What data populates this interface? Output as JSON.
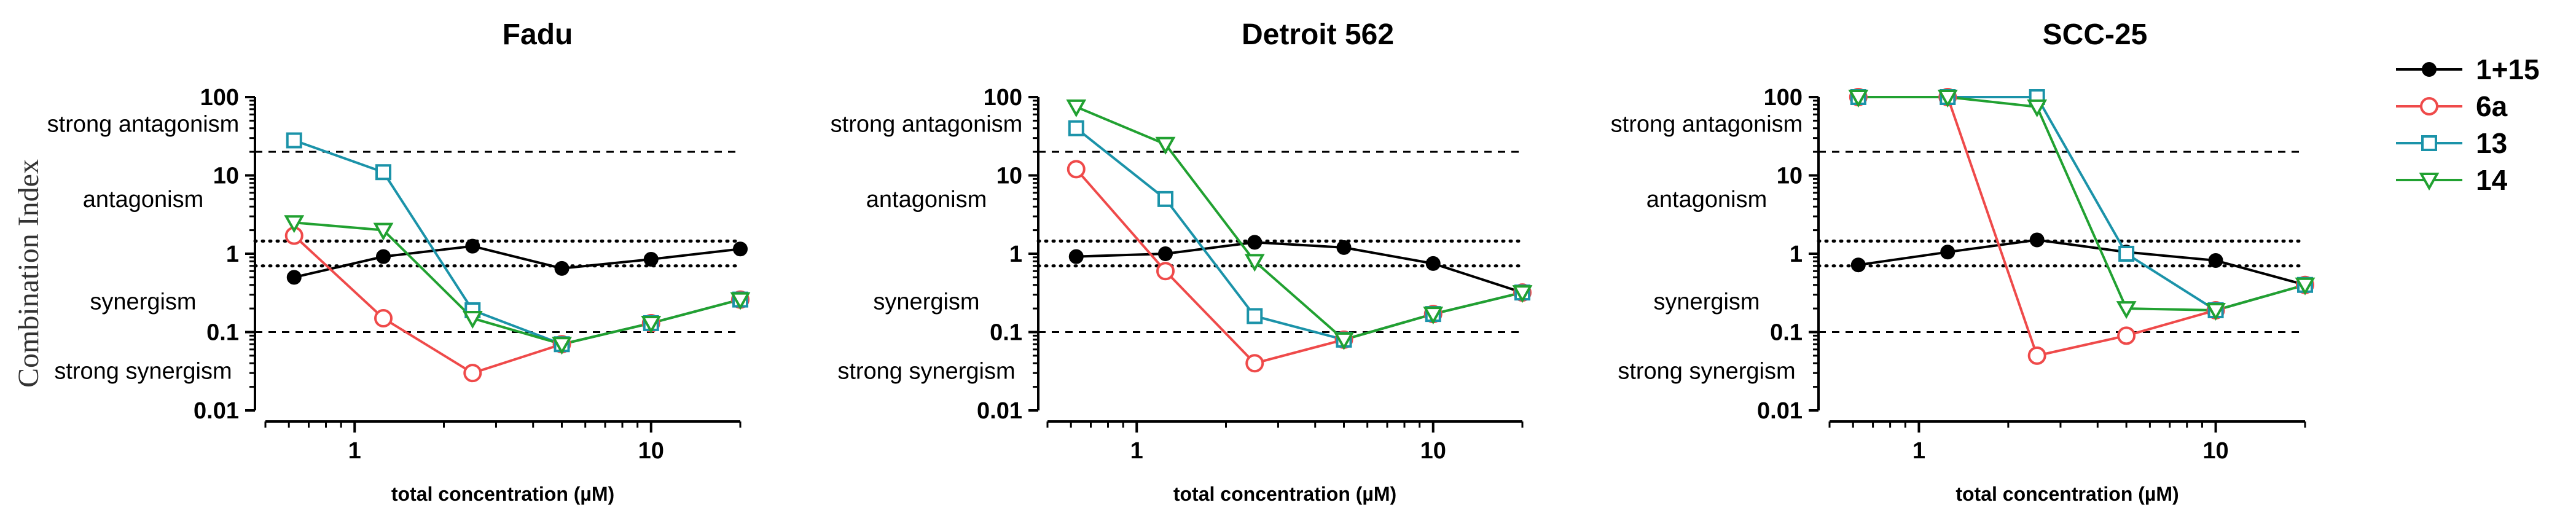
{
  "figure": {
    "ylabel": "Combination Index"
  },
  "chart_data": [
    {
      "type": "line",
      "title": "Fadu",
      "xlabel": "total concentration (µM)",
      "xscale": "log",
      "yscale": "log",
      "xlim": [
        0.5,
        20
      ],
      "ylim": [
        0.01,
        100
      ],
      "x_ticks": [
        1,
        10
      ],
      "y_ticks": [
        0.01,
        0.1,
        1,
        10,
        100
      ],
      "y_tick_labels": [
        "0.01",
        "0.1",
        "1",
        "10",
        "100"
      ],
      "x_tick_labels": [
        "1",
        "10"
      ],
      "reference_lines": {
        "dashed": [
          0.1,
          20
        ],
        "dotted": [
          0.7,
          1.45
        ]
      },
      "regions": [
        "strong antagonism",
        "antagonism",
        "synergism",
        "strong synergism"
      ],
      "series": [
        {
          "name": "1+15",
          "x": [
            0.625,
            1.25,
            2.5,
            5,
            10,
            20
          ],
          "values": [
            0.5,
            0.92,
            1.25,
            0.65,
            0.85,
            1.15
          ]
        },
        {
          "name": "6a",
          "x": [
            0.625,
            1.25,
            2.5,
            5,
            10,
            20
          ],
          "values": [
            1.7,
            0.15,
            0.03,
            0.07,
            0.13,
            0.26
          ]
        },
        {
          "name": "13",
          "x": [
            0.625,
            1.25,
            2.5,
            5,
            10,
            20
          ],
          "values": [
            28,
            11,
            0.19,
            0.07,
            0.13,
            0.26
          ]
        },
        {
          "name": "14",
          "x": [
            0.625,
            1.25,
            2.5,
            5,
            10,
            20
          ],
          "values": [
            2.5,
            2.0,
            0.15,
            0.07,
            0.13,
            0.26
          ]
        }
      ]
    },
    {
      "type": "line",
      "title": "Detroit 562",
      "xlabel": "total concentration (µM)",
      "xscale": "log",
      "yscale": "log",
      "xlim": [
        0.5,
        20
      ],
      "ylim": [
        0.01,
        100
      ],
      "x_ticks": [
        1,
        10
      ],
      "y_ticks": [
        0.01,
        0.1,
        1,
        10,
        100
      ],
      "y_tick_labels": [
        "0.01",
        "0.1",
        "1",
        "10",
        "100"
      ],
      "x_tick_labels": [
        "1",
        "10"
      ],
      "reference_lines": {
        "dashed": [
          0.1,
          20
        ],
        "dotted": [
          0.7,
          1.45
        ]
      },
      "regions": [
        "strong antagonism",
        "antagonism",
        "synergism",
        "strong synergism"
      ],
      "series": [
        {
          "name": "1+15",
          "x": [
            0.625,
            1.25,
            2.5,
            5,
            10,
            20
          ],
          "values": [
            0.92,
            1.0,
            1.4,
            1.2,
            0.75,
            0.32
          ]
        },
        {
          "name": "6a",
          "x": [
            0.625,
            1.25,
            2.5,
            5,
            10,
            20
          ],
          "values": [
            12,
            0.6,
            0.04,
            0.08,
            0.17,
            0.32
          ]
        },
        {
          "name": "13",
          "x": [
            0.625,
            1.25,
            2.5,
            5,
            10,
            20
          ],
          "values": [
            40,
            5.0,
            0.16,
            0.08,
            0.17,
            0.32
          ]
        },
        {
          "name": "14",
          "x": [
            0.625,
            1.25,
            2.5,
            5,
            10,
            20
          ],
          "values": [
            75,
            25,
            0.8,
            0.08,
            0.17,
            0.32
          ]
        }
      ]
    },
    {
      "type": "line",
      "title": "SCC-25",
      "xlabel": "total concentration (µM)",
      "xscale": "log",
      "yscale": "log",
      "xlim": [
        0.5,
        20
      ],
      "ylim": [
        0.01,
        100
      ],
      "x_ticks": [
        1,
        10
      ],
      "y_ticks": [
        0.01,
        0.1,
        1,
        10,
        100
      ],
      "y_tick_labels": [
        "0.01",
        "0.1",
        "1",
        "10",
        "100"
      ],
      "x_tick_labels": [
        "1",
        "10"
      ],
      "reference_lines": {
        "dashed": [
          0.1,
          20
        ],
        "dotted": [
          0.7,
          1.45
        ]
      },
      "regions": [
        "strong antagonism",
        "antagonism",
        "synergism",
        "strong synergism"
      ],
      "series": [
        {
          "name": "1+15",
          "x": [
            0.625,
            1.25,
            2.5,
            5,
            10,
            20
          ],
          "values": [
            0.72,
            1.05,
            1.5,
            1.05,
            0.82,
            0.4
          ]
        },
        {
          "name": "6a",
          "x": [
            0.625,
            1.25,
            2.5,
            5,
            10,
            20
          ],
          "values": [
            100,
            100,
            0.05,
            0.09,
            0.19,
            0.4
          ]
        },
        {
          "name": "13",
          "x": [
            0.625,
            1.25,
            2.5,
            5,
            10,
            20
          ],
          "values": [
            100,
            100,
            100,
            1.0,
            0.19,
            0.4
          ]
        },
        {
          "name": "14",
          "x": [
            0.625,
            1.25,
            2.5,
            5,
            10,
            20
          ],
          "values": [
            100,
            100,
            75,
            0.2,
            0.19,
            0.4
          ]
        }
      ]
    }
  ],
  "legend": {
    "items": [
      {
        "name": "1+15",
        "marker": "filled-circle",
        "color": "#000000"
      },
      {
        "name": "6a",
        "marker": "open-circle",
        "color": "#ef4a4a"
      },
      {
        "name": "13",
        "marker": "open-square",
        "color": "#1b93a9"
      },
      {
        "name": "14",
        "marker": "open-triangle-down",
        "color": "#21a131"
      }
    ]
  }
}
